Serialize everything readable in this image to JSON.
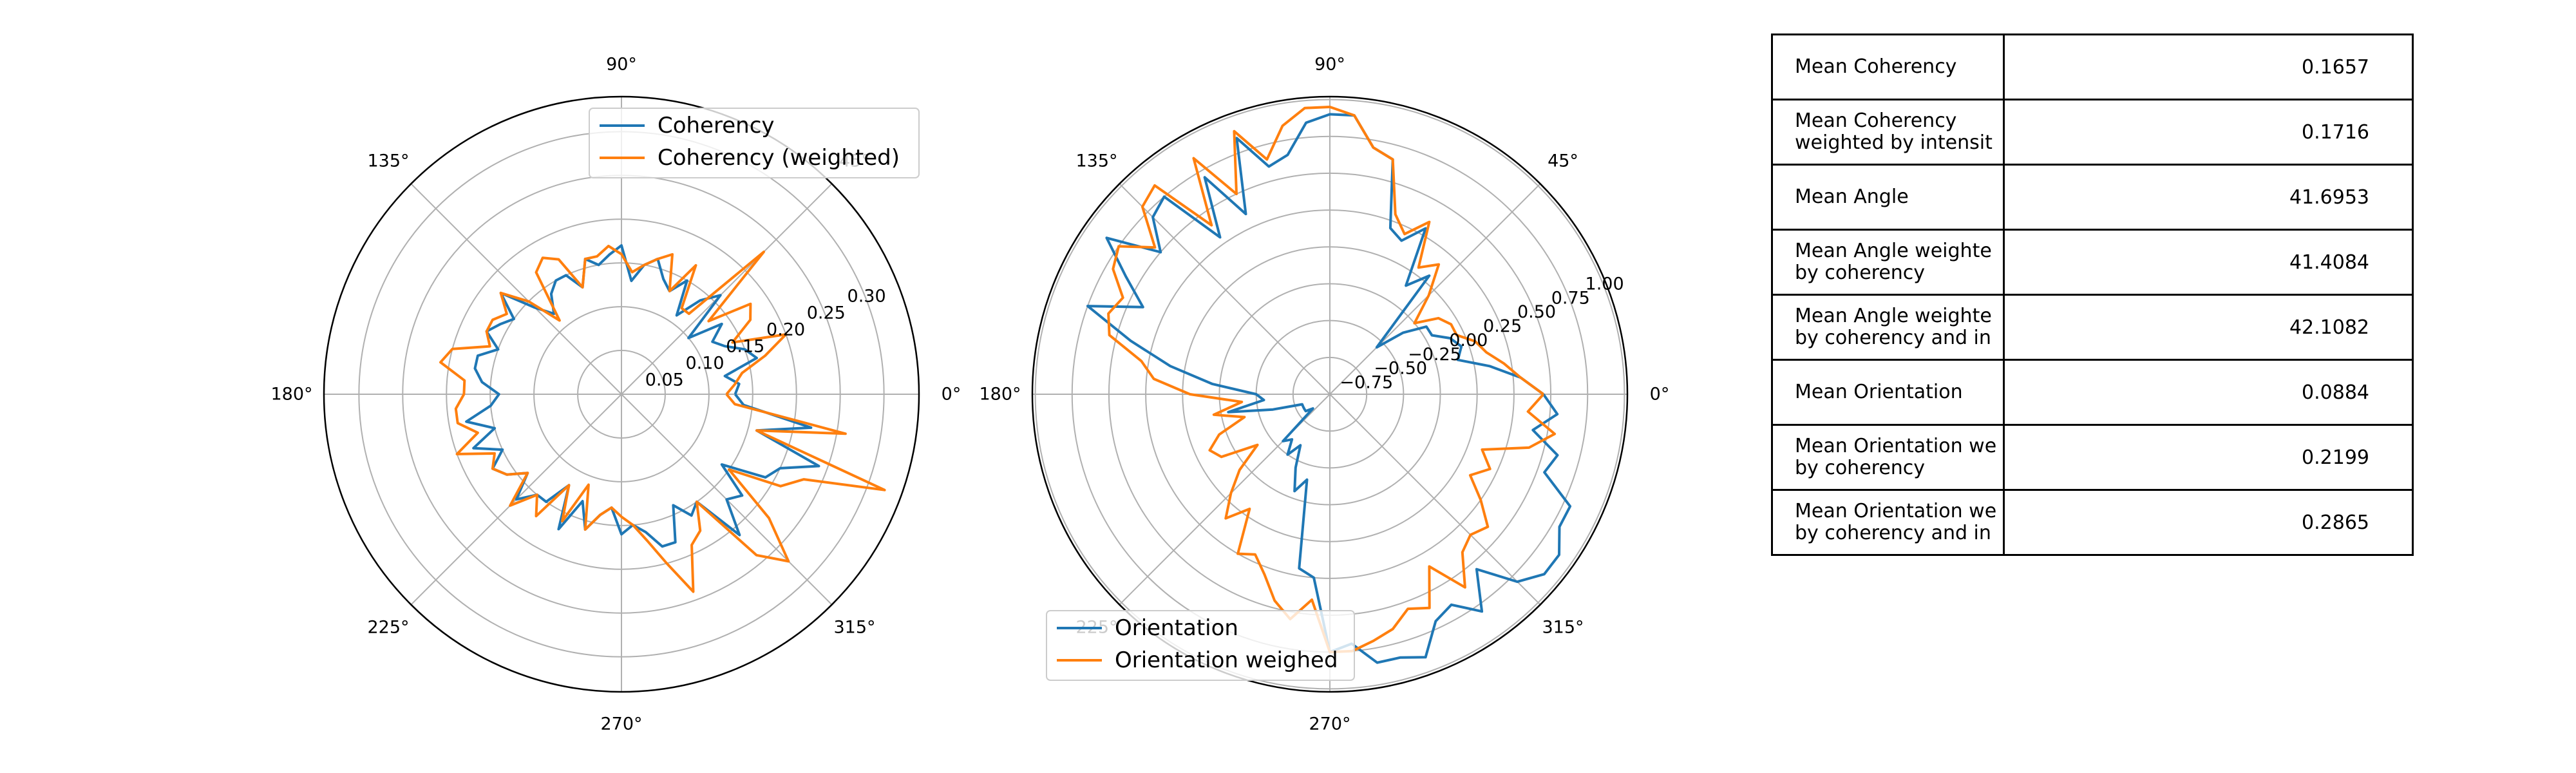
{
  "chart_data": [
    {
      "type": "line",
      "projection": "polar",
      "title": "",
      "theta_unit": "degrees",
      "theta_ticks": [
        "0°",
        "45°",
        "90°",
        "135°",
        "180°",
        "225°",
        "270°",
        "315°"
      ],
      "r_tick_values": [
        0.05,
        0.1,
        0.15,
        0.2,
        0.25,
        0.3
      ],
      "r_tick_labels": [
        "0.05",
        "0.10",
        "0.15",
        "0.20",
        "0.25",
        "0.30"
      ],
      "rlim": [
        0,
        0.34
      ],
      "r_label_angle_deg": 22.5,
      "grid": true,
      "legend": {
        "location": "upper-right",
        "entries": [
          "Coherency",
          "Coherency (weighted)"
        ]
      },
      "series": [
        {
          "name": "Coherency",
          "color": "#1f77b4",
          "theta": [
            0,
            5,
            10,
            15,
            20,
            25,
            30,
            35,
            40,
            45,
            50,
            55,
            60,
            65,
            70,
            75,
            80,
            85,
            90,
            95,
            100,
            105,
            110,
            115,
            120,
            125,
            130,
            135,
            140,
            145,
            150,
            155,
            160,
            165,
            170,
            175,
            180,
            185,
            190,
            195,
            200,
            205,
            210,
            215,
            220,
            225,
            230,
            235,
            240,
            245,
            250,
            255,
            260,
            265,
            270,
            275,
            280,
            285,
            290,
            295,
            300,
            305,
            310,
            315,
            320,
            325,
            330,
            335,
            340,
            345,
            350,
            355
          ],
          "r": [
            0.13,
            0.135,
            0.12,
            0.16,
            0.15,
            0.13,
            0.12,
            0.14,
            0.1,
            0.16,
            0.14,
            0.11,
            0.15,
            0.13,
            0.14,
            0.16,
            0.15,
            0.13,
            0.17,
            0.16,
            0.15,
            0.16,
            0.13,
            0.15,
            0.15,
            0.14,
            0.12,
            0.14,
            0.18,
            0.15,
            0.16,
            0.17,
            0.15,
            0.17,
            0.17,
            0.16,
            0.14,
            0.15,
            0.18,
            0.15,
            0.18,
            0.15,
            0.17,
            0.16,
            0.14,
            0.17,
            0.15,
            0.15,
            0.12,
            0.17,
            0.13,
            0.16,
            0.14,
            0.13,
            0.16,
            0.15,
            0.16,
            0.18,
            0.18,
            0.14,
            0.16,
            0.15,
            0.21,
            0.17,
            0.18,
            0.14,
            0.19,
            0.2,
            0.24,
            0.16,
            0.22,
            0.14
          ]
        },
        {
          "name": "Coherency (weighted)",
          "color": "#ff7f0e",
          "theta": [
            0,
            5,
            10,
            15,
            20,
            25,
            30,
            35,
            40,
            45,
            50,
            55,
            60,
            65,
            70,
            75,
            80,
            85,
            90,
            95,
            100,
            105,
            110,
            115,
            120,
            125,
            130,
            135,
            140,
            145,
            150,
            155,
            160,
            165,
            170,
            175,
            180,
            185,
            190,
            195,
            200,
            205,
            210,
            215,
            220,
            225,
            230,
            235,
            240,
            245,
            250,
            255,
            260,
            265,
            270,
            275,
            280,
            285,
            290,
            295,
            300,
            305,
            310,
            315,
            320,
            325,
            330,
            335,
            340,
            345,
            350,
            355
          ],
          "r": [
            0.12,
            0.13,
            0.14,
            0.17,
            0.2,
            0.14,
            0.17,
            0.18,
            0.13,
            0.23,
            0.12,
            0.12,
            0.17,
            0.13,
            0.17,
            0.16,
            0.15,
            0.14,
            0.16,
            0.17,
            0.16,
            0.16,
            0.13,
            0.17,
            0.18,
            0.17,
            0.11,
            0.15,
            0.18,
            0.16,
            0.17,
            0.17,
            0.16,
            0.2,
            0.21,
            0.18,
            0.18,
            0.19,
            0.19,
            0.17,
            0.2,
            0.16,
            0.17,
            0.16,
            0.14,
            0.18,
            0.15,
            0.17,
            0.12,
            0.16,
            0.11,
            0.16,
            0.14,
            0.13,
            0.14,
            0.15,
            0.17,
            0.2,
            0.24,
            0.19,
            0.18,
            0.15,
            0.24,
            0.27,
            0.22,
            0.15,
            0.21,
            0.23,
            0.32,
            0.16,
            0.26,
            0.13
          ]
        }
      ]
    },
    {
      "type": "line",
      "projection": "polar",
      "title": "",
      "theta_unit": "degrees",
      "theta_ticks": [
        "0°",
        "45°",
        "90°",
        "135°",
        "180°",
        "225°",
        "270°",
        "315°"
      ],
      "r_tick_values": [
        -0.75,
        -0.5,
        -0.25,
        0.0,
        0.25,
        0.5,
        0.75,
        1.0
      ],
      "r_tick_labels": [
        "−0.75",
        "−0.50",
        "−0.25",
        "0.00",
        "0.25",
        "0.50",
        "0.75",
        "1.00"
      ],
      "rlim": [
        -1.0,
        1.02
      ],
      "r_label_angle_deg": 22.5,
      "grid": true,
      "legend": {
        "location": "lower-left",
        "entries": [
          "Orientation",
          "Orientation weighed"
        ]
      },
      "series": [
        {
          "name": "Orientation",
          "color": "#1f77b4",
          "theta": [
            0,
            5,
            10,
            15,
            20,
            25,
            30,
            35,
            40,
            45,
            50,
            55,
            60,
            65,
            70,
            75,
            80,
            85,
            90,
            95,
            100,
            105,
            110,
            115,
            120,
            125,
            130,
            135,
            140,
            145,
            150,
            155,
            160,
            165,
            170,
            175,
            180,
            185,
            190,
            195,
            200,
            205,
            210,
            215,
            220,
            225,
            230,
            235,
            240,
            245,
            250,
            255,
            260,
            265,
            270,
            275,
            280,
            285,
            290,
            295,
            300,
            305,
            310,
            315,
            320,
            325,
            330,
            335,
            340,
            345,
            350,
            355
          ],
          "r": [
            0.45,
            0.3,
            0.1,
            -0.1,
            -0.05,
            -0.1,
            -0.2,
            -0.2,
            -0.35,
            -0.55,
            0.05,
            -0.1,
            0.3,
            0.15,
            0.2,
            0.65,
            0.7,
            0.9,
            0.9,
            0.85,
            0.65,
            0.6,
            0.85,
            0.35,
            0.7,
            0.3,
            0.75,
            0.7,
            0.5,
            0.85,
            0.6,
            0.4,
            0.75,
            0.4,
            0.1,
            -0.2,
            -0.5,
            -0.55,
            -0.3,
            -0.6,
            -0.8,
            -0.8,
            -0.8,
            -0.8,
            -0.85,
            -0.55,
            -0.6,
            -0.5,
            -0.6,
            -0.45,
            -0.3,
            -0.4,
            0.2,
            0.25,
            0.75,
            0.7,
            0.85,
            0.85,
            0.9,
            0.7,
            0.65,
            0.8,
            0.55,
            0.8,
            0.9,
            0.9,
            0.8,
            0.8,
            0.55,
            0.6,
            0.4,
            0.55
          ]
        },
        {
          "name": "Orientation weighed",
          "color": "#ff7f0e",
          "theta": [
            0,
            5,
            10,
            15,
            20,
            25,
            30,
            35,
            40,
            45,
            50,
            55,
            60,
            65,
            70,
            75,
            80,
            85,
            90,
            95,
            100,
            105,
            110,
            115,
            120,
            125,
            130,
            135,
            140,
            145,
            150,
            155,
            160,
            165,
            170,
            175,
            180,
            185,
            190,
            195,
            200,
            205,
            210,
            215,
            220,
            225,
            230,
            235,
            240,
            245,
            250,
            255,
            260,
            265,
            270,
            275,
            280,
            285,
            290,
            295,
            300,
            305,
            310,
            315,
            320,
            325,
            330,
            335,
            340,
            345,
            350,
            355
          ],
          "r": [
            0.45,
            0.3,
            0.2,
            0.1,
            0.05,
            -0.05,
            -0.05,
            -0.1,
            -0.25,
            -0.05,
            0.15,
            0.05,
            0.35,
            0.2,
            0.3,
            0.65,
            0.7,
            0.9,
            0.95,
            0.95,
            0.85,
            0.65,
            0.9,
            0.5,
            0.85,
            0.4,
            0.85,
            0.8,
            0.55,
            0.75,
            0.7,
            0.55,
            0.6,
            0.55,
            0.3,
            0.2,
            -0.05,
            -0.4,
            -0.2,
            -0.4,
            -0.2,
            -0.1,
            -0.15,
            -0.4,
            -0.2,
            -0.05,
            0.1,
            -0.05,
            0.25,
            0.2,
            0.3,
            0.45,
            0.55,
            0.4,
            0.75,
            0.75,
            0.7,
            0.65,
            0.55,
            0.6,
            0.35,
            0.6,
            0.4,
            0.35,
            0.4,
            0.25,
            0.1,
            0.2,
            0.1,
            0.4,
            0.55,
            0.35
          ]
        }
      ]
    }
  ],
  "stats_table": {
    "rows": [
      {
        "label": "Mean Coherency",
        "value": "0.1657"
      },
      {
        "label": "Mean Coherency\nweighted by intensit",
        "value": "0.1716"
      },
      {
        "label": "Mean Angle",
        "value": "41.6953"
      },
      {
        "label": "Mean Angle weighte\nby coherency",
        "value": "41.4084"
      },
      {
        "label": "Mean Angle weighte\nby coherency and in",
        "value": "42.1082"
      },
      {
        "label": "Mean Orientation",
        "value": "0.0884"
      },
      {
        "label": "Mean Orientation we\nby coherency",
        "value": "0.2199"
      },
      {
        "label": "Mean Orientation we\nby coherency and in",
        "value": "0.2865"
      }
    ]
  }
}
